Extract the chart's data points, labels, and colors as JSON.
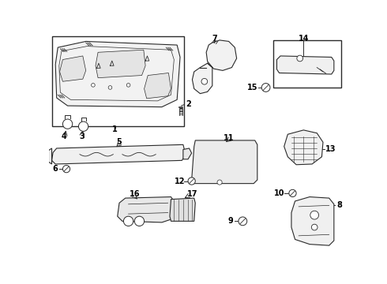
{
  "bg_color": "#ffffff",
  "line_color": "#2a2a2a",
  "text_color": "#000000",
  "figw": 4.9,
  "figh": 3.6,
  "dpi": 100
}
